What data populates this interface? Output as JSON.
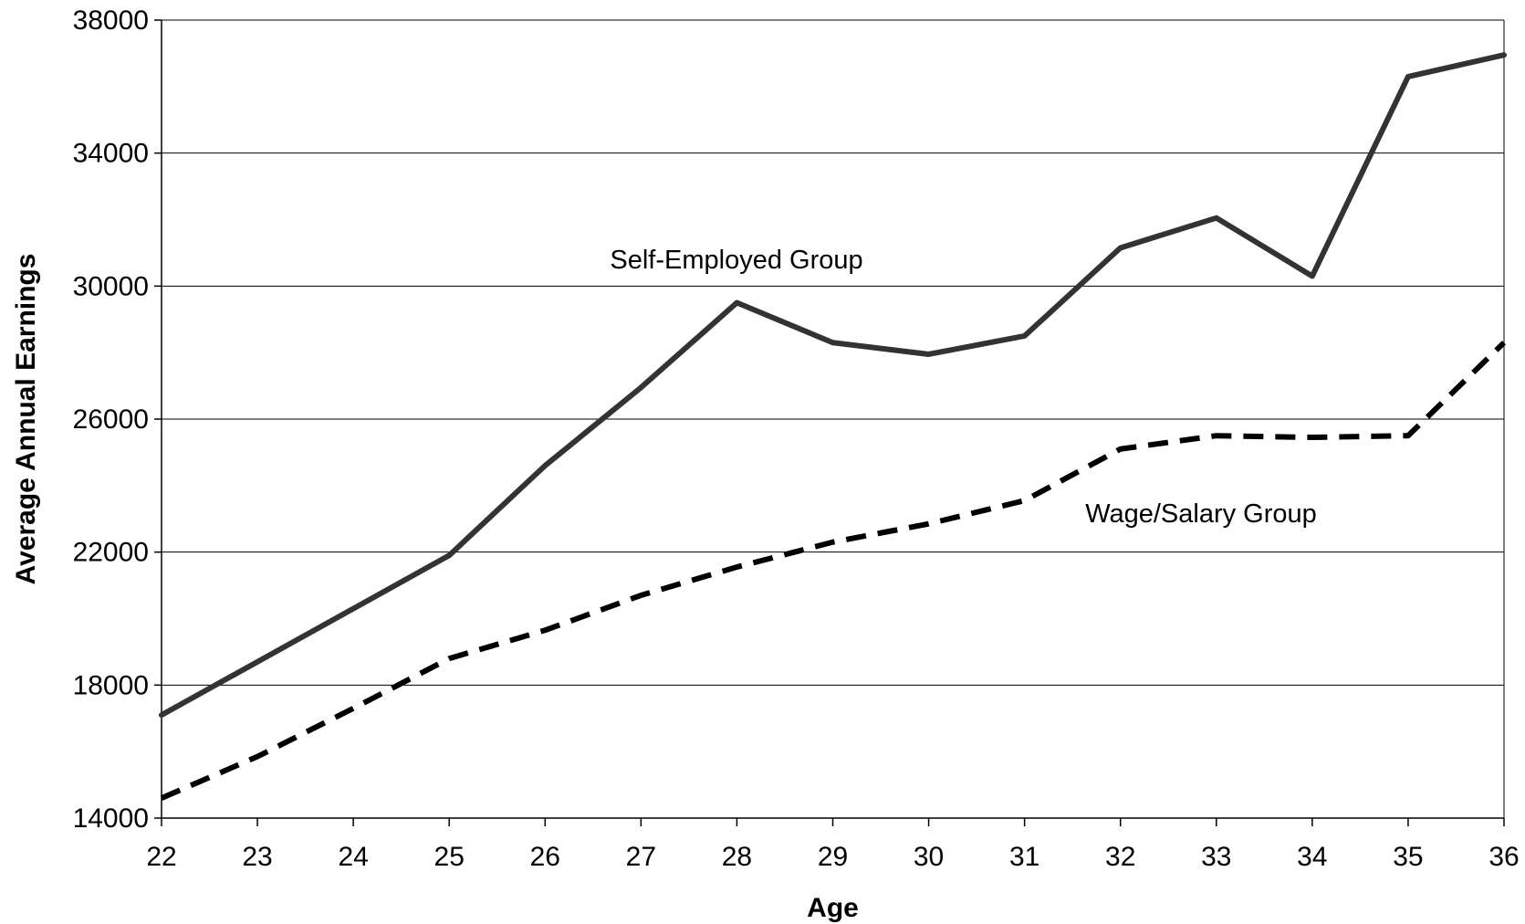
{
  "chart_data": {
    "type": "line",
    "title": "",
    "xlabel": "Age",
    "ylabel": "Average Annual Earnings",
    "x": [
      22,
      23,
      24,
      25,
      26,
      27,
      28,
      29,
      30,
      31,
      32,
      33,
      34,
      35,
      36
    ],
    "xlim": [
      22,
      36
    ],
    "ylim": [
      14000,
      38000
    ],
    "yticks": [
      14000,
      18000,
      22000,
      26000,
      30000,
      34000,
      38000
    ],
    "grid": "horizontal",
    "legend": "none",
    "series": [
      {
        "name": "Self-Employed Group",
        "style": "solid",
        "color": "#333333",
        "values": [
          17100,
          18700,
          20300,
          21900,
          24600,
          26950,
          29500,
          28300,
          27950,
          28500,
          31150,
          32050,
          30300,
          36300,
          36950
        ]
      },
      {
        "name": "Wage/Salary Group",
        "style": "dashed",
        "color": "#000000",
        "values": [
          14600,
          15850,
          17300,
          18800,
          19650,
          20700,
          21550,
          22300,
          22850,
          23550,
          25100,
          25500,
          25450,
          25500,
          28300
        ]
      }
    ],
    "annotations": [
      {
        "text": "Self-Employed Group",
        "series": 0
      },
      {
        "text": "Wage/Salary Group",
        "series": 1
      }
    ]
  }
}
